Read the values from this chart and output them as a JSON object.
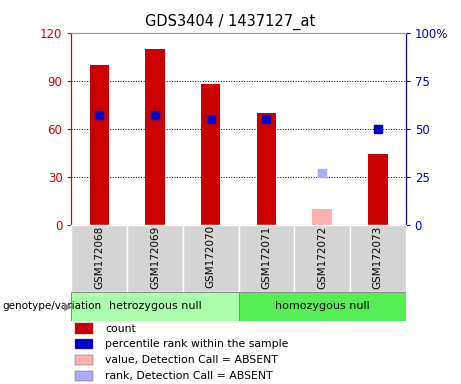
{
  "title": "GDS3404 / 1437127_at",
  "samples": [
    "GSM172068",
    "GSM172069",
    "GSM172070",
    "GSM172071",
    "GSM172072",
    "GSM172073"
  ],
  "count_values": [
    100,
    110,
    88,
    70,
    null,
    44
  ],
  "count_absent": [
    null,
    null,
    null,
    null,
    10,
    null
  ],
  "percentile_values": [
    57,
    57,
    55,
    55,
    null,
    50
  ],
  "percentile_absent": [
    null,
    null,
    null,
    null,
    27,
    null
  ],
  "left_ylim": [
    0,
    120
  ],
  "left_yticks": [
    0,
    30,
    60,
    90,
    120
  ],
  "right_ylim": [
    0,
    100
  ],
  "right_yticks": [
    0,
    25,
    50,
    75,
    100
  ],
  "right_yticklabels": [
    "0",
    "25",
    "50",
    "75",
    "100%"
  ],
  "left_axis_color": "#cc0000",
  "right_axis_color": "#0000cc",
  "bar_color": "#cc0000",
  "bar_absent_color": "#ffb0b0",
  "dot_color": "#0000cc",
  "dot_absent_color": "#aaaaff",
  "group1_label": "hetrozygous null",
  "group2_label": "homozygous null",
  "group1_color": "#aaffaa",
  "group2_color": "#55ee55",
  "genotype_label": "genotype/variation",
  "legend_items": [
    {
      "label": "count",
      "color": "#cc0000"
    },
    {
      "label": "percentile rank within the sample",
      "color": "#0000cc"
    },
    {
      "label": "value, Detection Call = ABSENT",
      "color": "#ffb0b0"
    },
    {
      "label": "rank, Detection Call = ABSENT",
      "color": "#aaaaff"
    }
  ],
  "bar_width": 0.35,
  "dot_size": 6,
  "figsize": [
    4.61,
    3.84
  ],
  "dpi": 100
}
